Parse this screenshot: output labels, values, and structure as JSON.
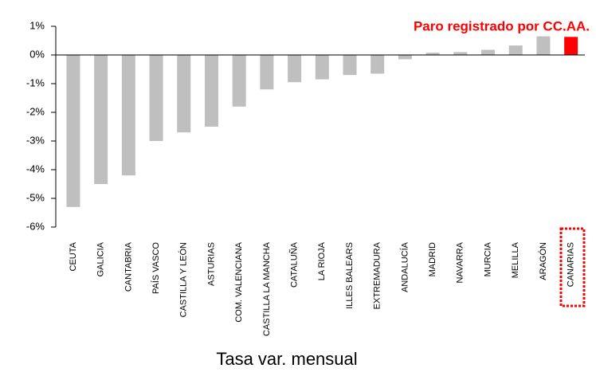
{
  "chart_data": {
    "type": "bar",
    "title": "Paro registrado por CC.AA.",
    "x_label": "Tasa var. mensual",
    "categories": [
      "CEUTA",
      "GALICIA",
      "CANTABRIA",
      "PAÍS VASCO",
      "CASTILLA Y LEÓN",
      "ASTURIAS",
      "COM. VALENCIANA",
      "CASTILLA LA MANCHA",
      "CATALUÑA",
      "LA RIOJA",
      "ILLES BALEARS",
      "EXTREMADURA",
      "ANDALUCÍA",
      "MADRID",
      "NAVARRA",
      "MURCIA",
      "MELILLA",
      "ARAGÓN",
      "CANARIAS"
    ],
    "values": [
      -5.3,
      -4.5,
      -4.2,
      -3.0,
      -2.7,
      -2.5,
      -1.8,
      -1.2,
      -0.95,
      -0.85,
      -0.7,
      -0.65,
      -0.15,
      0.08,
      0.1,
      0.18,
      0.33,
      0.65,
      0.63
    ],
    "colors": [
      "#bfbfbf",
      "#bfbfbf",
      "#bfbfbf",
      "#bfbfbf",
      "#bfbfbf",
      "#bfbfbf",
      "#bfbfbf",
      "#bfbfbf",
      "#bfbfbf",
      "#bfbfbf",
      "#bfbfbf",
      "#bfbfbf",
      "#bfbfbf",
      "#bfbfbf",
      "#bfbfbf",
      "#bfbfbf",
      "#bfbfbf",
      "#bfbfbf",
      "#ff0000"
    ],
    "ylim": [
      -6,
      1
    ],
    "yticks": [
      {
        "value": 1,
        "label": "1%"
      },
      {
        "value": 0,
        "label": "0%"
      },
      {
        "value": -1,
        "label": "-1%"
      },
      {
        "value": -2,
        "label": "-2%"
      },
      {
        "value": -3,
        "label": "-3%"
      },
      {
        "value": -4,
        "label": "-4%"
      },
      {
        "value": -5,
        "label": "-5%"
      },
      {
        "value": -6,
        "label": "-6%"
      }
    ],
    "grid": false
  }
}
